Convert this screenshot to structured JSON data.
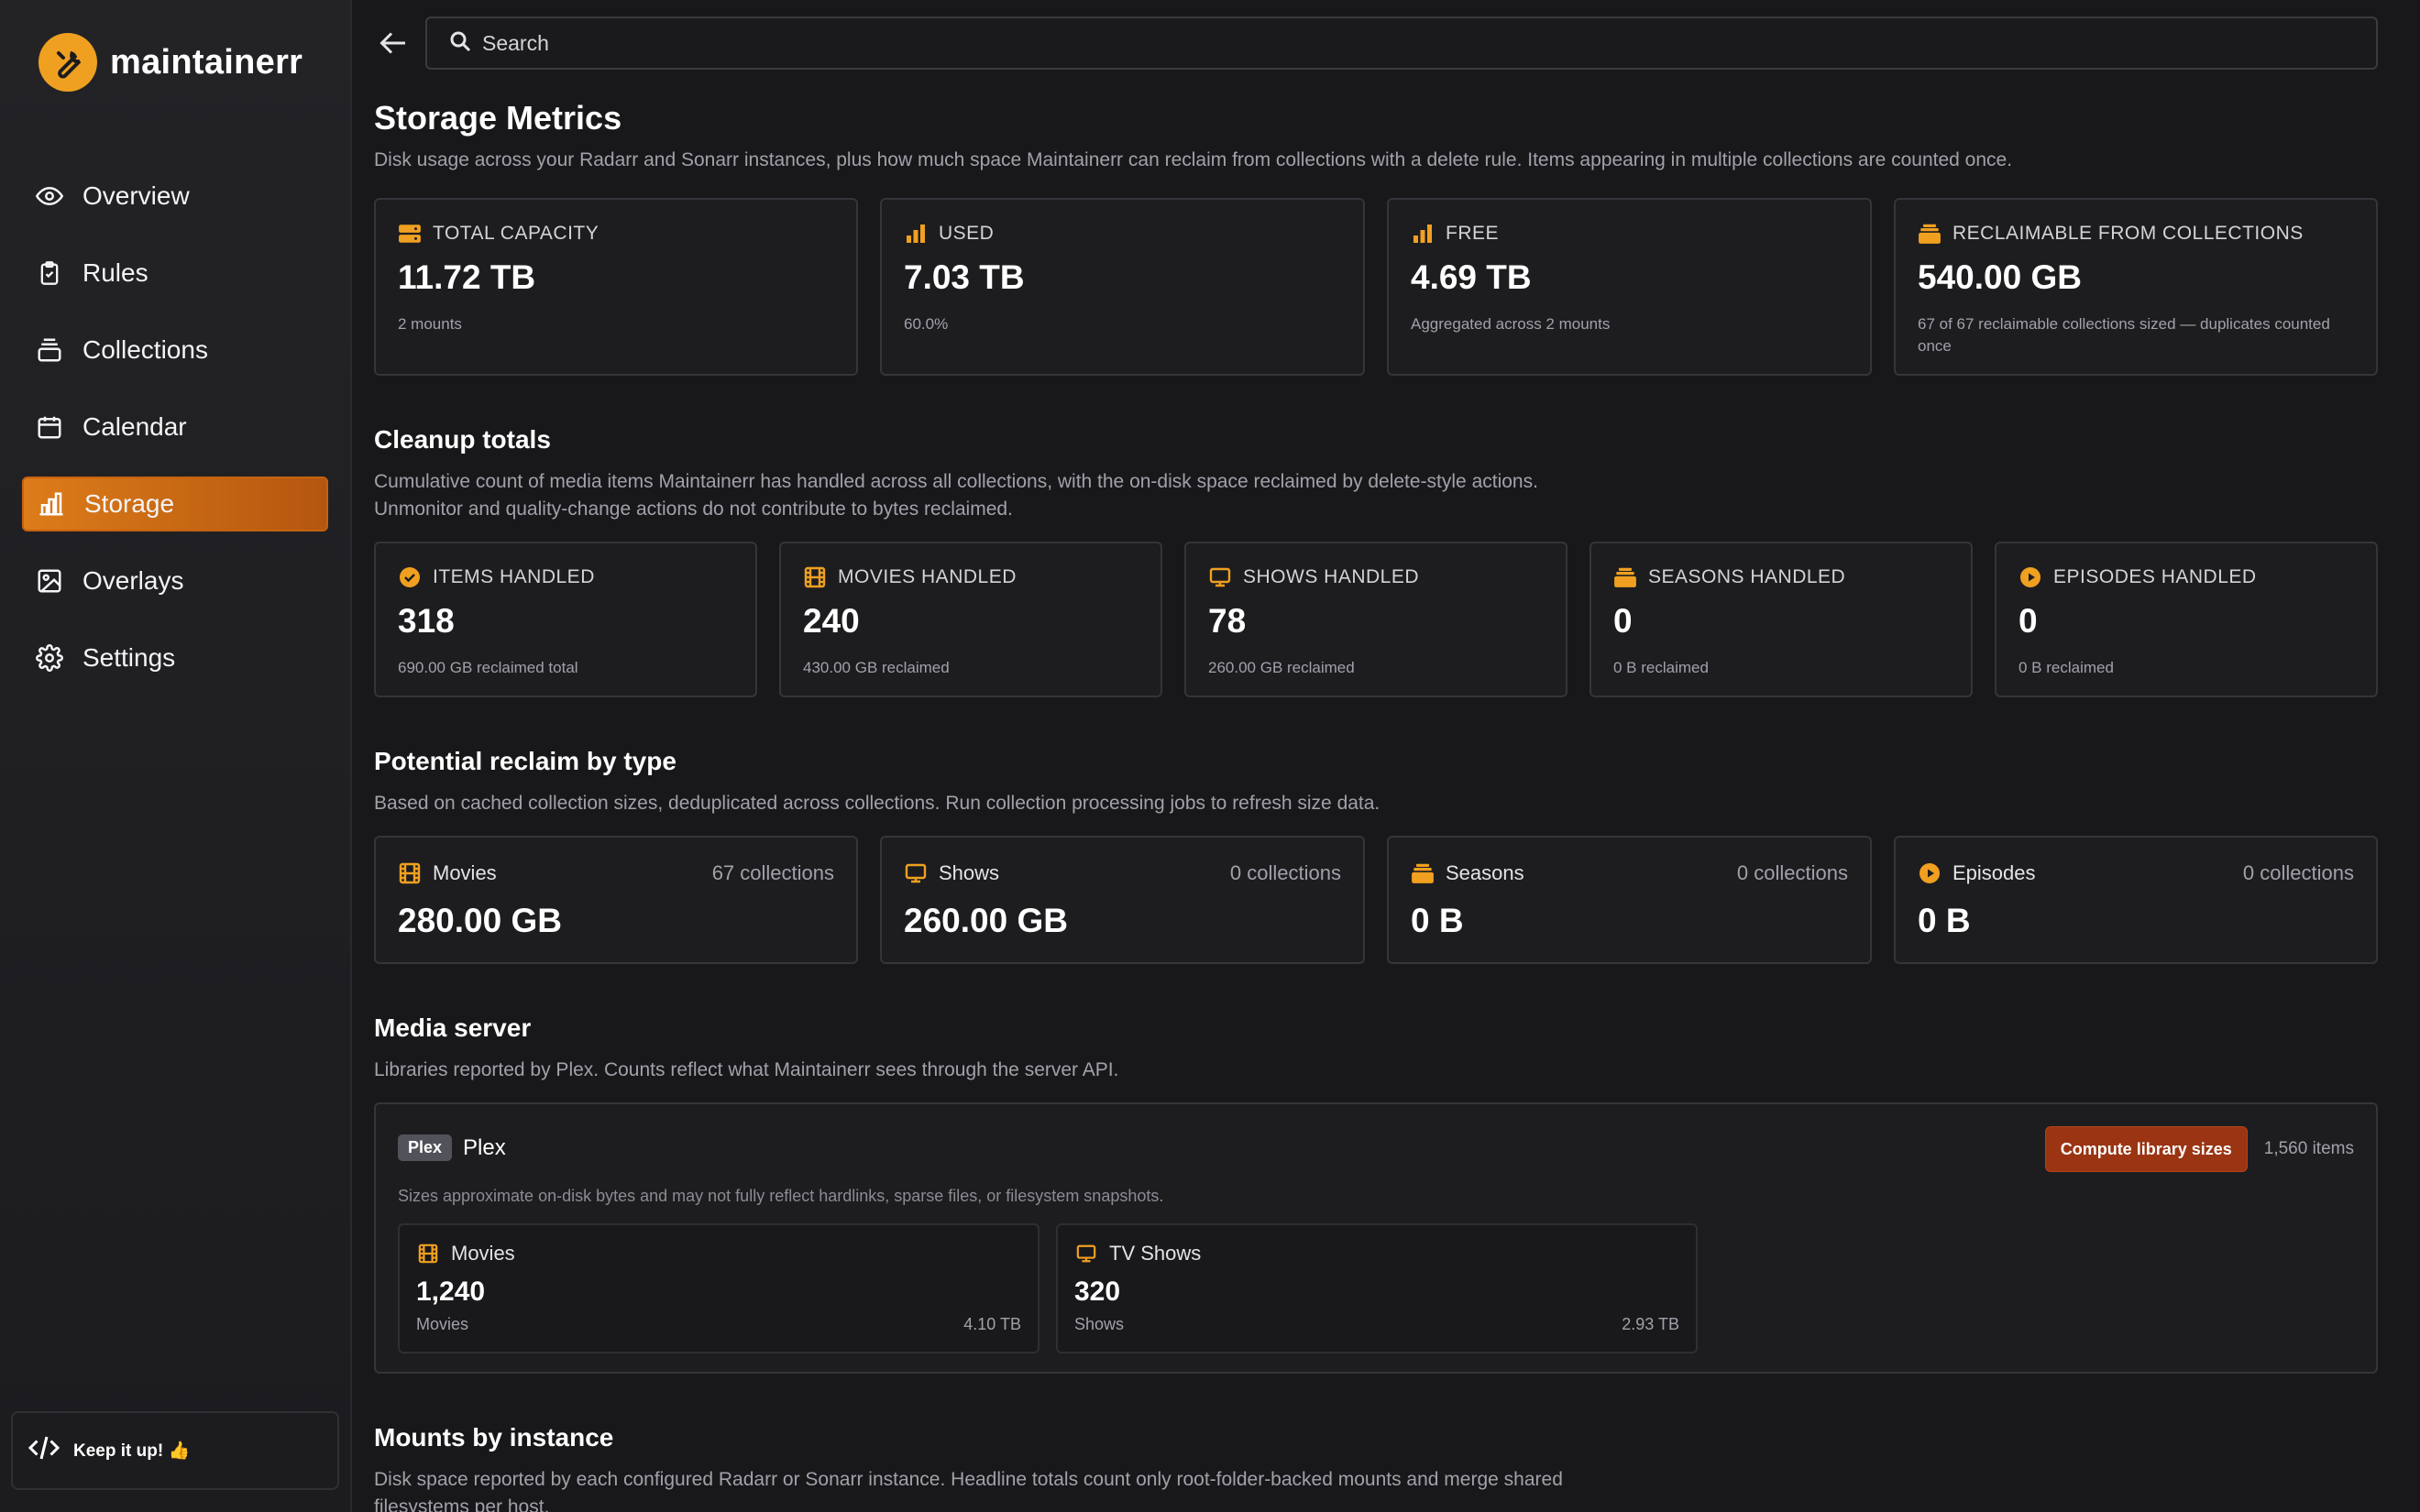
{
  "app": {
    "name": "maintainerr"
  },
  "colors": {
    "accent": "#f0a020",
    "active_nav": "#dd7c1a",
    "button": "#9a3412"
  },
  "sidebar": {
    "items": [
      {
        "label": "Overview",
        "icon": "eye-icon"
      },
      {
        "label": "Rules",
        "icon": "clipboard-check-icon"
      },
      {
        "label": "Collections",
        "icon": "stack-icon"
      },
      {
        "label": "Calendar",
        "icon": "calendar-icon"
      },
      {
        "label": "Storage",
        "icon": "bar-chart-icon",
        "active": true
      },
      {
        "label": "Overlays",
        "icon": "image-icon"
      },
      {
        "label": "Settings",
        "icon": "gear-icon"
      }
    ],
    "footer": {
      "label": "Keep it up! 👍",
      "icon": "code-icon"
    }
  },
  "search": {
    "placeholder": "Search"
  },
  "page": {
    "title": "Storage Metrics",
    "description": "Disk usage across your Radarr and Sonarr instances, plus how much space Maintainerr can reclaim from collections with a delete rule. Items appearing in multiple collections are counted once."
  },
  "summary": [
    {
      "label": "TOTAL CAPACITY",
      "value": "11.72 TB",
      "sub": "2 mounts",
      "icon": "server-icon"
    },
    {
      "label": "USED",
      "value": "7.03 TB",
      "sub": "60.0%",
      "icon": "bar-chart-icon"
    },
    {
      "label": "FREE",
      "value": "4.69 TB",
      "sub": "Aggregated across 2 mounts",
      "icon": "bar-chart-icon"
    },
    {
      "label": "RECLAIMABLE FROM COLLECTIONS",
      "value": "540.00 GB",
      "sub": "67 of 67 reclaimable collections sized — duplicates counted once",
      "icon": "stack-icon"
    }
  ],
  "cleanup": {
    "title": "Cleanup totals",
    "description": "Cumulative count of media items Maintainerr has handled across all collections, with the on-disk space reclaimed by delete-style actions. Unmonitor and quality-change actions do not contribute to bytes reclaimed.",
    "cards": [
      {
        "label": "ITEMS HANDLED",
        "value": "318",
        "sub": "690.00 GB reclaimed total",
        "icon": "check-circle-icon"
      },
      {
        "label": "MOVIES HANDLED",
        "value": "240",
        "sub": "430.00 GB reclaimed",
        "icon": "film-icon"
      },
      {
        "label": "SHOWS HANDLED",
        "value": "78",
        "sub": "260.00 GB reclaimed",
        "icon": "tv-icon"
      },
      {
        "label": "SEASONS HANDLED",
        "value": "0",
        "sub": "0 B reclaimed",
        "icon": "stack-icon"
      },
      {
        "label": "EPISODES HANDLED",
        "value": "0",
        "sub": "0 B reclaimed",
        "icon": "play-circle-icon"
      }
    ]
  },
  "reclaim": {
    "title": "Potential reclaim by type",
    "description": "Based on cached collection sizes, deduplicated across collections. Run collection processing jobs to refresh size data.",
    "cards": [
      {
        "label": "Movies",
        "count": "67 collections",
        "value": "280.00 GB",
        "icon": "film-icon"
      },
      {
        "label": "Shows",
        "count": "0 collections",
        "value": "260.00 GB",
        "icon": "tv-icon"
      },
      {
        "label": "Seasons",
        "count": "0 collections",
        "value": "0 B",
        "icon": "stack-icon"
      },
      {
        "label": "Episodes",
        "count": "0 collections",
        "value": "0 B",
        "icon": "play-circle-icon"
      }
    ]
  },
  "media_server": {
    "title": "Media server",
    "description": "Libraries reported by Plex. Counts reflect what Maintainerr sees through the server API.",
    "badge": "Plex",
    "name": "Plex",
    "button": "Compute library sizes",
    "items": "1,560 items",
    "note": "Sizes approximate on-disk bytes and may not fully reflect hardlinks, sparse files, or filesystem snapshots.",
    "libraries": [
      {
        "label": "Movies",
        "value": "1,240",
        "sub": "Movies",
        "size": "4.10 TB",
        "icon": "film-icon"
      },
      {
        "label": "TV Shows",
        "value": "320",
        "sub": "Shows",
        "size": "2.93 TB",
        "icon": "tv-icon"
      }
    ]
  },
  "mounts": {
    "title": "Mounts by instance",
    "description": "Disk space reported by each configured Radarr or Sonarr instance. Headline totals count only root-folder-backed mounts and merge shared filesystems per host."
  }
}
